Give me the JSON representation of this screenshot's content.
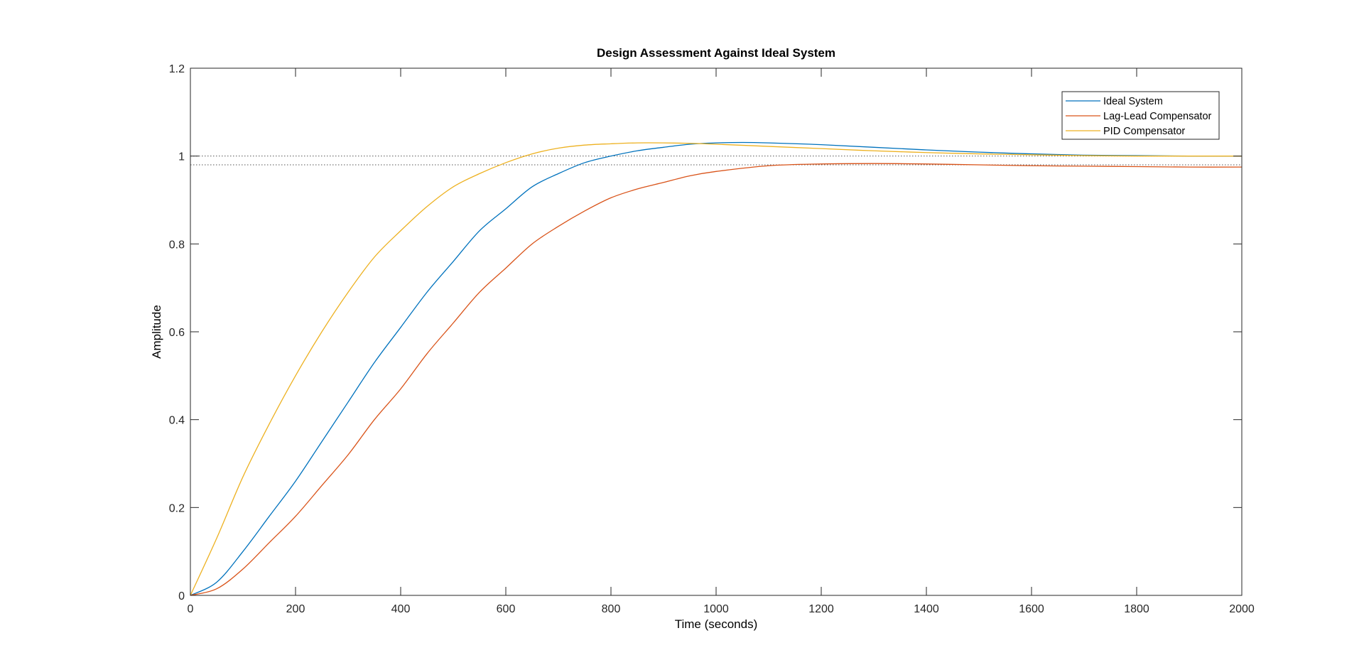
{
  "chart_data": {
    "type": "line",
    "title": "Design Assessment Against Ideal System",
    "xlabel": "Time (seconds)",
    "ylabel": "Amplitude",
    "xlim": [
      0,
      2000
    ],
    "ylim": [
      0,
      1.2
    ],
    "xticks": [
      0,
      200,
      400,
      600,
      800,
      1000,
      1200,
      1400,
      1600,
      1800,
      2000
    ],
    "yticks": [
      0,
      0.2,
      0.4,
      0.6,
      0.8,
      1,
      1.2
    ],
    "xtick_labels": [
      "0",
      "200",
      "400",
      "600",
      "800",
      "1000",
      "1200",
      "1400",
      "1600",
      "1800",
      "2000"
    ],
    "ytick_labels": [
      "0",
      "0.2",
      "0.4",
      "0.6",
      "0.8",
      "1",
      "1.2"
    ],
    "grid": false,
    "legend_position": "top-right",
    "reference_lines": [
      {
        "y": 1.0,
        "style": "dotted",
        "color": "#555555"
      },
      {
        "y": 0.98,
        "style": "dotted",
        "color": "#555555"
      }
    ],
    "series": [
      {
        "name": "Ideal System",
        "color": "#0072BD",
        "x": [
          0,
          50,
          100,
          150,
          200,
          250,
          300,
          350,
          400,
          450,
          500,
          550,
          600,
          650,
          700,
          750,
          800,
          850,
          900,
          950,
          1000,
          1050,
          1100,
          1200,
          1300,
          1400,
          1500,
          1600,
          1700,
          1800,
          1900,
          2000
        ],
        "y": [
          0,
          0.03,
          0.1,
          0.18,
          0.26,
          0.35,
          0.44,
          0.53,
          0.61,
          0.69,
          0.76,
          0.83,
          0.88,
          0.93,
          0.96,
          0.985,
          1.0,
          1.012,
          1.02,
          1.027,
          1.03,
          1.031,
          1.03,
          1.026,
          1.02,
          1.014,
          1.009,
          1.005,
          1.002,
          1.001,
          1.0,
          1.0
        ]
      },
      {
        "name": "Lag-Lead Compensator",
        "color": "#D95319",
        "x": [
          0,
          50,
          100,
          150,
          200,
          250,
          300,
          350,
          400,
          450,
          500,
          550,
          600,
          650,
          700,
          750,
          800,
          850,
          900,
          950,
          1000,
          1100,
          1200,
          1300,
          1400,
          1500,
          1600,
          1700,
          1800,
          1900,
          2000
        ],
        "y": [
          0,
          0.015,
          0.06,
          0.12,
          0.18,
          0.25,
          0.32,
          0.4,
          0.47,
          0.55,
          0.62,
          0.69,
          0.745,
          0.8,
          0.84,
          0.875,
          0.905,
          0.925,
          0.94,
          0.955,
          0.965,
          0.978,
          0.982,
          0.983,
          0.982,
          0.98,
          0.978,
          0.977,
          0.976,
          0.975,
          0.975
        ]
      },
      {
        "name": "PID Compensator",
        "color": "#EDB120",
        "x": [
          0,
          50,
          100,
          150,
          200,
          250,
          300,
          350,
          400,
          450,
          500,
          550,
          600,
          650,
          700,
          750,
          800,
          850,
          900,
          950,
          1000,
          1100,
          1200,
          1300,
          1400,
          1500,
          1600,
          1700,
          1800,
          1900,
          2000
        ],
        "y": [
          0,
          0.13,
          0.27,
          0.39,
          0.5,
          0.6,
          0.69,
          0.77,
          0.83,
          0.885,
          0.93,
          0.96,
          0.985,
          1.005,
          1.018,
          1.025,
          1.028,
          1.03,
          1.03,
          1.029,
          1.027,
          1.022,
          1.017,
          1.012,
          1.008,
          1.005,
          1.003,
          1.001,
          1.0,
          1.0,
          1.0
        ]
      }
    ]
  }
}
